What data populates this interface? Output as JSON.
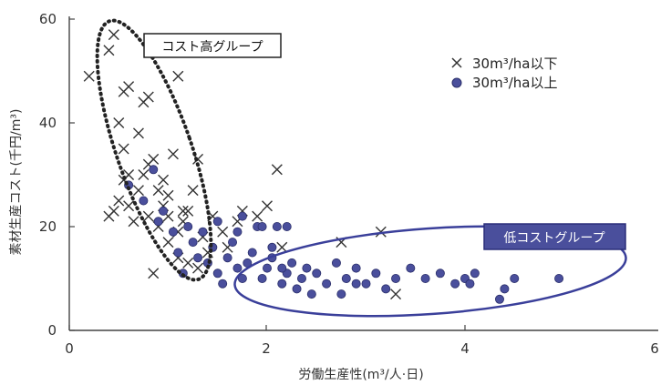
{
  "chart_data": {
    "type": "scatter",
    "title": "",
    "xlabel": "労働生産性(m³/人·日)",
    "ylabel": "素材生産コスト(千円/m³)",
    "xlim": [
      0,
      6
    ],
    "ylim": [
      0,
      60
    ],
    "xticks": [
      "0",
      "2",
      "4",
      "6"
    ],
    "yticks": [
      "0",
      "20",
      "40",
      "60"
    ],
    "grid": false,
    "legend_position": "top-right",
    "series": [
      {
        "name": "30m³/ha以下",
        "marker": "x",
        "color": "#333333",
        "points": [
          [
            0.2,
            49
          ],
          [
            0.4,
            54
          ],
          [
            0.45,
            57
          ],
          [
            0.55,
            46
          ],
          [
            0.6,
            47
          ],
          [
            0.5,
            40
          ],
          [
            0.55,
            35
          ],
          [
            0.6,
            30
          ],
          [
            0.7,
            38
          ],
          [
            0.75,
            44
          ],
          [
            0.8,
            45
          ],
          [
            0.85,
            33
          ],
          [
            0.9,
            27
          ],
          [
            0.95,
            29
          ],
          [
            1.1,
            49
          ],
          [
            1.05,
            34
          ],
          [
            1.2,
            23
          ],
          [
            1.0,
            26
          ],
          [
            0.7,
            27
          ],
          [
            0.6,
            24
          ],
          [
            0.5,
            25
          ],
          [
            0.45,
            23
          ],
          [
            0.4,
            22
          ],
          [
            0.65,
            21
          ],
          [
            0.75,
            30
          ],
          [
            0.8,
            32
          ],
          [
            0.9,
            20
          ],
          [
            1.0,
            22
          ],
          [
            1.1,
            19
          ],
          [
            1.15,
            23
          ],
          [
            1.25,
            27
          ],
          [
            1.3,
            33
          ],
          [
            1.35,
            18
          ],
          [
            1.4,
            15
          ],
          [
            1.2,
            13
          ],
          [
            1.1,
            14
          ],
          [
            1.0,
            17
          ],
          [
            0.85,
            11
          ],
          [
            1.3,
            12
          ],
          [
            1.45,
            22
          ],
          [
            1.55,
            19
          ],
          [
            1.6,
            16
          ],
          [
            1.7,
            21
          ],
          [
            1.75,
            23
          ],
          [
            1.9,
            22
          ],
          [
            2.0,
            24
          ],
          [
            2.1,
            31
          ],
          [
            2.15,
            16
          ],
          [
            2.75,
            17
          ],
          [
            3.15,
            19
          ],
          [
            3.3,
            7
          ],
          [
            0.95,
            24
          ],
          [
            0.55,
            29
          ],
          [
            1.15,
            21
          ],
          [
            0.8,
            22
          ]
        ]
      },
      {
        "name": "30m³/ha以上",
        "marker": "circle",
        "color": "#4a4f9c",
        "points": [
          [
            0.6,
            28
          ],
          [
            0.75,
            25
          ],
          [
            0.85,
            31
          ],
          [
            0.9,
            21
          ],
          [
            0.95,
            23
          ],
          [
            1.05,
            19
          ],
          [
            1.1,
            15
          ],
          [
            1.2,
            20
          ],
          [
            1.25,
            17
          ],
          [
            1.3,
            14
          ],
          [
            1.15,
            11
          ],
          [
            1.4,
            13
          ],
          [
            1.45,
            16
          ],
          [
            1.5,
            21
          ],
          [
            1.55,
            9
          ],
          [
            1.6,
            14
          ],
          [
            1.65,
            17
          ],
          [
            1.7,
            19
          ],
          [
            1.75,
            22
          ],
          [
            1.8,
            13
          ],
          [
            1.85,
            15
          ],
          [
            1.9,
            20
          ],
          [
            1.95,
            10
          ],
          [
            2.0,
            12
          ],
          [
            2.05,
            14
          ],
          [
            2.1,
            20
          ],
          [
            2.15,
            9
          ],
          [
            2.2,
            11
          ],
          [
            2.25,
            13
          ],
          [
            2.3,
            8
          ],
          [
            2.35,
            10
          ],
          [
            2.4,
            12
          ],
          [
            2.5,
            11
          ],
          [
            2.6,
            9
          ],
          [
            2.7,
            13
          ],
          [
            2.75,
            7
          ],
          [
            2.8,
            10
          ],
          [
            2.9,
            12
          ],
          [
            3.0,
            9
          ],
          [
            3.1,
            11
          ],
          [
            3.2,
            8
          ],
          [
            3.3,
            10
          ],
          [
            3.45,
            12
          ],
          [
            3.6,
            10
          ],
          [
            3.75,
            11
          ],
          [
            3.9,
            9
          ],
          [
            4.0,
            10
          ],
          [
            4.1,
            11
          ],
          [
            4.35,
            6
          ],
          [
            4.4,
            8
          ],
          [
            4.5,
            10
          ],
          [
            4.95,
            10
          ],
          [
            2.2,
            20
          ],
          [
            1.95,
            20
          ],
          [
            2.05,
            16
          ],
          [
            1.5,
            11
          ],
          [
            1.7,
            12
          ],
          [
            2.45,
            7
          ],
          [
            2.9,
            9
          ],
          [
            4.05,
            9
          ],
          [
            1.35,
            19
          ],
          [
            2.15,
            12
          ],
          [
            1.75,
            10
          ]
        ]
      }
    ],
    "annotations": [
      {
        "text": "コスト高グループ",
        "shape": "dotted-ellipse",
        "color": "#222222"
      },
      {
        "text": "低コストグループ",
        "shape": "solid-ellipse",
        "color": "#3a3f9a"
      }
    ]
  }
}
